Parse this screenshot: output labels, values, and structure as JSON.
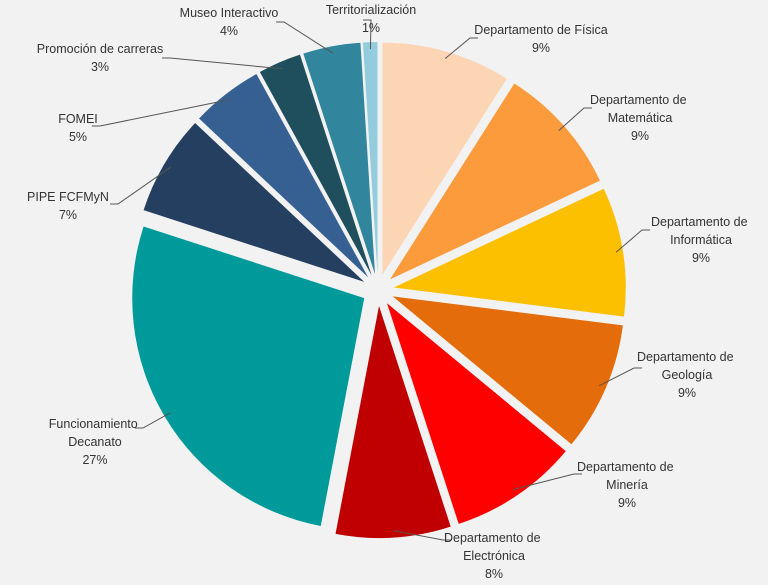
{
  "chart_data": {
    "type": "pie",
    "categories": [
      "Departamento de Física",
      "Departamento de Matemática",
      "Departamento de Informática",
      "Departamento de Geología",
      "Departamento de Minería",
      "Departamento de Electrónica",
      "Funcionamiento Decanato",
      "PIPE FCFMyN",
      "FOMEI",
      "Promoción de carreras",
      "Museo Interactivo",
      "Territorialización"
    ],
    "values": [
      9,
      9,
      9,
      9,
      9,
      8,
      27,
      7,
      5,
      3,
      4,
      1
    ],
    "value_labels": [
      "9%",
      "9%",
      "9%",
      "9%",
      "9%",
      "8%",
      "27%",
      "7%",
      "5%",
      "3%",
      "4%",
      "1%"
    ],
    "colors": [
      "#fcd5b5",
      "#fb9b3c",
      "#fdc000",
      "#e46c0a",
      "#ff0000",
      "#c00000",
      "#009a9a",
      "#243f60",
      "#376092",
      "#1f4e5c",
      "#31859c",
      "#93cddd"
    ]
  }
}
